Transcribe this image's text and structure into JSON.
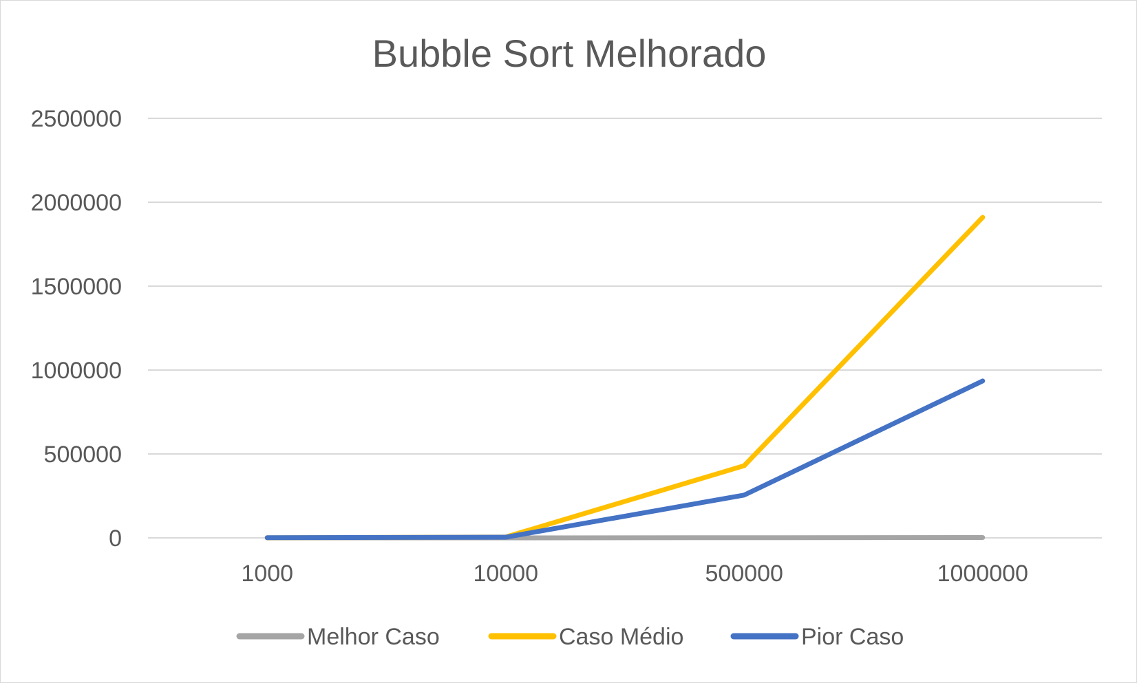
{
  "chart_data": {
    "type": "line",
    "title": "Bubble Sort Melhorado",
    "xlabel": "",
    "ylabel": "",
    "categories": [
      "1000",
      "10000",
      "500000",
      "1000000"
    ],
    "ylim": [
      0,
      2500000
    ],
    "yticks": [
      "0",
      "500000",
      "1000000",
      "1500000",
      "2000000",
      "2500000"
    ],
    "grid": true,
    "legend_position": "bottom",
    "series": [
      {
        "name": "Melhor Caso",
        "color": "#a5a5a5",
        "values": [
          2,
          20,
          1000,
          2000
        ]
      },
      {
        "name": "Caso Médio",
        "color": "#ffc000",
        "values": [
          500,
          5000,
          430000,
          1910000
        ]
      },
      {
        "name": "Pior Caso",
        "color": "#4472c4",
        "values": [
          1000,
          4000,
          255000,
          935000
        ]
      }
    ]
  }
}
